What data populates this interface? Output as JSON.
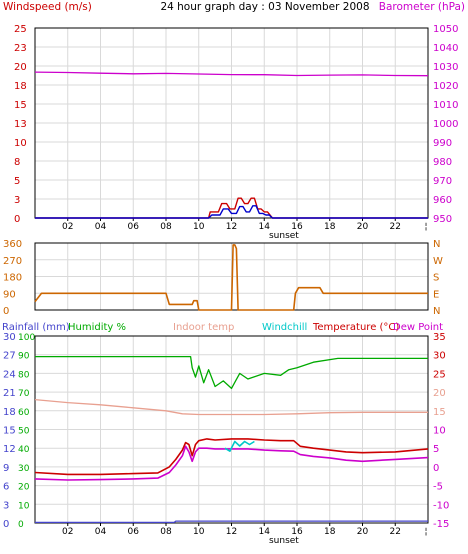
{
  "colors": {
    "windspeed": "#cc0000",
    "wind_gust": "#0000cc",
    "barometer": "#cc00cc",
    "wind_direction": "#cc6600",
    "rainfall": "#4444cc",
    "humidity": "#00aa00",
    "indoor_temp": "#e8a090",
    "windchill": "#00c8c8",
    "temperature": "#cc0000",
    "dew_point": "#cc00cc",
    "grid": "#d9d9d9",
    "frame": "#000000"
  },
  "chart_data": [
    {
      "type": "line",
      "title": "24 hour graph day : 03 November 2008",
      "ylabel_left": "Windspeed (m/s)",
      "ylabel_right": "Barometer (hPa)",
      "left_ticks": [
        "25",
        "23",
        "20",
        "18",
        "15",
        "13",
        "10",
        "8",
        "5",
        "3",
        "0"
      ],
      "right_ticks": [
        "1050",
        "1040",
        "1030",
        "1020",
        "1010",
        "1000",
        "990",
        "980",
        "970",
        "960",
        "950"
      ],
      "ylim_left": [
        0,
        25
      ],
      "ylim_right": [
        950,
        1050
      ],
      "x_ticks": [
        "02",
        "04",
        "06",
        "08",
        "10",
        "12",
        "14",
        "16",
        "18",
        "20",
        "22"
      ],
      "x_annotation": "sunset",
      "xlim": [
        0,
        24
      ],
      "series": [
        {
          "name": "Barometer (hPa)",
          "axis": "right",
          "x": [
            0,
            2,
            4,
            6,
            8,
            10,
            12,
            14,
            16,
            18,
            20,
            22,
            24
          ],
          "y": [
            1026.8,
            1026.6,
            1026.2,
            1025.9,
            1026.1,
            1025.8,
            1025.5,
            1025.4,
            1025.0,
            1025.2,
            1025.3,
            1025.0,
            1024.9
          ]
        },
        {
          "name": "Windspeed (m/s)",
          "axis": "left",
          "x": [
            0,
            10.6,
            10.7,
            11.2,
            11.4,
            11.7,
            11.9,
            12.2,
            12.4,
            12.6,
            12.8,
            13.0,
            13.2,
            13.4,
            13.6,
            13.8,
            14.0,
            14.2,
            14.5,
            14.7,
            24
          ],
          "y": [
            0,
            0,
            0.8,
            0.8,
            1.9,
            1.9,
            1.2,
            1.2,
            2.6,
            2.6,
            1.9,
            1.9,
            2.6,
            2.6,
            1.2,
            1.2,
            0.8,
            0.8,
            0,
            0,
            0
          ]
        },
        {
          "name": "Wind gust",
          "axis": "left",
          "x": [
            0,
            10.6,
            10.8,
            11.3,
            11.5,
            11.8,
            12.0,
            12.3,
            12.5,
            12.7,
            12.9,
            13.1,
            13.3,
            13.5,
            13.7,
            13.9,
            14.1,
            14.3,
            14.5,
            24
          ],
          "y": [
            0,
            0,
            0.4,
            0.4,
            1.2,
            1.2,
            0.6,
            0.6,
            1.5,
            1.5,
            0.8,
            0.8,
            1.6,
            1.6,
            0.6,
            0.6,
            0.4,
            0.4,
            0,
            0
          ]
        }
      ]
    },
    {
      "type": "line",
      "left_ticks": [
        "360",
        "270",
        "180",
        "90",
        "0"
      ],
      "right_ticks": [
        "N",
        "W",
        "S",
        "E",
        "N"
      ],
      "ylim": [
        0,
        360
      ],
      "series": [
        {
          "name": "Wind direction",
          "axis": "left",
          "x": [
            0,
            0.4,
            8.0,
            8.2,
            9.6,
            9.7,
            9.9,
            10.0,
            12.0,
            12.1,
            12.2,
            12.3,
            12.4,
            12.6,
            12.7,
            15.8,
            15.9,
            16.1,
            17.4,
            17.6,
            24
          ],
          "y": [
            45,
            90,
            90,
            30,
            30,
            50,
            50,
            0,
            0,
            350,
            350,
            330,
            0,
            0,
            0,
            0,
            90,
            120,
            120,
            90,
            90
          ]
        }
      ]
    },
    {
      "type": "line",
      "legend": [
        "Rainfall (mm)",
        "Humidity %",
        "Indoor temp",
        "Windchill",
        "Temperature (°C)",
        "Dew Point"
      ],
      "left_ticks": [
        "100",
        "90",
        "80",
        "70",
        "60",
        "50",
        "40",
        "30",
        "20",
        "10",
        "0"
      ],
      "left_ticks_rain": [
        "30",
        "27",
        "24",
        "21",
        "18",
        "15",
        "12",
        "9",
        "6",
        "3",
        "0"
      ],
      "right_ticks": [
        "35",
        "30",
        "25",
        "20",
        "15",
        "10",
        "5",
        "0",
        "-5",
        "-10",
        "-15"
      ],
      "ylim_left": [
        0,
        100
      ],
      "ylim_right": [
        -15,
        35
      ],
      "x_ticks": [
        "02",
        "04",
        "06",
        "08",
        "10",
        "12",
        "14",
        "16",
        "18",
        "20",
        "22"
      ],
      "x_annotation": "sunset",
      "series": [
        {
          "name": "Humidity %",
          "axis": "left",
          "x": [
            0,
            2,
            4,
            6,
            8,
            9.5,
            9.6,
            9.8,
            10.0,
            10.3,
            10.6,
            11.0,
            11.5,
            12.0,
            12.5,
            13.0,
            14.0,
            15.0,
            15.5,
            16.0,
            17.0,
            18.5,
            24
          ],
          "y": [
            89,
            89,
            89,
            89,
            89,
            89,
            83,
            78,
            84,
            75,
            82,
            73,
            76,
            72,
            80,
            77,
            80,
            79,
            82,
            83,
            86,
            88,
            88
          ]
        },
        {
          "name": "Rainfall (mm)",
          "axis": "left",
          "x": [
            0,
            8.5,
            8.6,
            24
          ],
          "y": [
            0.3,
            0.3,
            1.0,
            1.0
          ]
        },
        {
          "name": "Indoor temp",
          "axis": "right",
          "x": [
            0,
            2,
            4,
            6,
            8,
            9,
            10,
            12,
            14,
            16,
            18,
            20,
            22,
            24
          ],
          "y": [
            18.0,
            17.2,
            16.6,
            15.8,
            15.0,
            14.2,
            14.0,
            14.0,
            14.0,
            14.2,
            14.5,
            14.6,
            14.6,
            14.6
          ]
        },
        {
          "name": "Temperature (°C)",
          "axis": "right",
          "x": [
            0,
            2,
            4,
            6,
            7.5,
            8.2,
            8.6,
            9.0,
            9.2,
            9.4,
            9.6,
            9.8,
            10.0,
            10.5,
            11.0,
            12.0,
            13.0,
            14.0,
            15.0,
            15.8,
            16.2,
            17.0,
            18.0,
            19.0,
            20.0,
            22.0,
            24
          ],
          "y": [
            -1.5,
            -2.0,
            -2.0,
            -1.8,
            -1.6,
            0.0,
            2.0,
            4.5,
            6.5,
            6.0,
            3.0,
            6.0,
            7.0,
            7.5,
            7.2,
            7.5,
            7.5,
            7.2,
            7.0,
            7.0,
            5.5,
            5.0,
            4.5,
            4.0,
            3.8,
            4.0,
            4.8
          ]
        },
        {
          "name": "Windchill",
          "axis": "right",
          "x": [
            11.6,
            11.9,
            12.2,
            12.5,
            12.8,
            13.1,
            13.4
          ],
          "y": [
            5.0,
            4.2,
            6.8,
            5.6,
            6.8,
            6.0,
            6.8
          ]
        },
        {
          "name": "Dew Point",
          "axis": "right",
          "x": [
            0,
            2,
            4,
            6,
            7.5,
            8.2,
            8.6,
            9.0,
            9.2,
            9.4,
            9.6,
            9.8,
            10.0,
            10.5,
            11.0,
            12.0,
            13.0,
            14.0,
            15.0,
            15.8,
            16.2,
            17.0,
            18.0,
            19.0,
            20.0,
            22.0,
            24
          ],
          "y": [
            -3.2,
            -3.5,
            -3.4,
            -3.2,
            -3.0,
            -1.5,
            0.5,
            3.0,
            5.5,
            4.0,
            1.5,
            4.0,
            5.0,
            5.0,
            4.8,
            4.8,
            4.8,
            4.5,
            4.3,
            4.2,
            3.3,
            2.8,
            2.4,
            1.8,
            1.5,
            2.0,
            2.5
          ]
        }
      ]
    }
  ]
}
